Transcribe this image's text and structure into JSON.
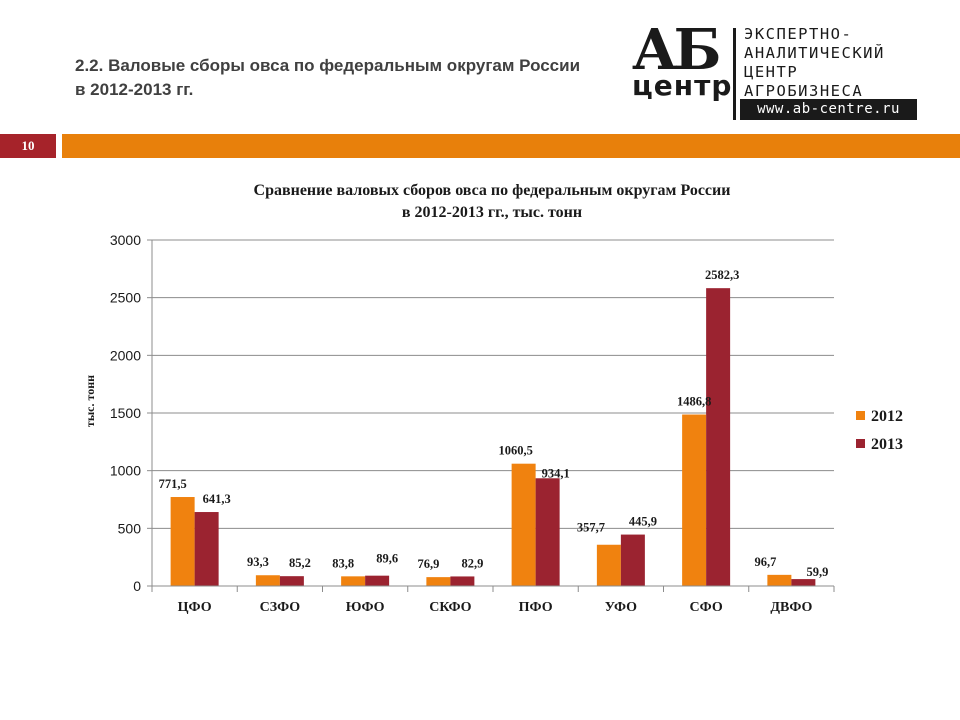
{
  "slide": {
    "title": "2.2. Валовые сборы овса по федеральным округам России в 2012-2013 гг.",
    "page_number": "10"
  },
  "logo": {
    "ab": "АБ",
    "centr": "центр",
    "lines": [
      "ЭКСПЕРТНО-",
      "АНАЛИТИЧЕСКИЙ",
      "ЦЕНТР",
      "АГРОБИЗНЕСА"
    ],
    "url": "www.ab-centre.ru"
  },
  "colors": {
    "accent": "#e8800b",
    "badge": "#a6232a",
    "series_2012": "#f0820f",
    "series_2013": "#9b2330"
  },
  "chart_data": {
    "type": "bar",
    "title": "Сравнение валовых сборов овса по федеральным округам России в 2012-2013 гг., тыс. тонн",
    "title_lines": [
      "Сравнение валовых сборов овса по федеральным округам России",
      "в 2012-2013 гг., тыс. тонн"
    ],
    "ylabel": "тыс. тонн",
    "xlabel": "",
    "ylim": [
      0,
      3000
    ],
    "yticks": [
      0,
      500,
      1000,
      1500,
      2000,
      2500,
      3000
    ],
    "grid": true,
    "legend": "right",
    "categories": [
      "ЦФО",
      "СЗФО",
      "ЮФО",
      "СКФО",
      "ПФО",
      "УФО",
      "СФО",
      "ДВФО"
    ],
    "series": [
      {
        "name": "2012",
        "values": [
          771.5,
          93.3,
          83.8,
          76.9,
          1060.5,
          357.7,
          1486.8,
          96.7
        ],
        "labels": [
          "771,5",
          "93,3",
          "83,8",
          "76,9",
          "1060,5",
          "357,7",
          "1486,8",
          "96,7"
        ]
      },
      {
        "name": "2013",
        "values": [
          641.3,
          85.2,
          89.6,
          82.9,
          934.1,
          445.9,
          2582.3,
          59.9
        ],
        "labels": [
          "641,3",
          "85,2",
          "89,6",
          "82,9",
          "934,1",
          "445,9",
          "2582,3",
          "59,9"
        ]
      }
    ]
  }
}
